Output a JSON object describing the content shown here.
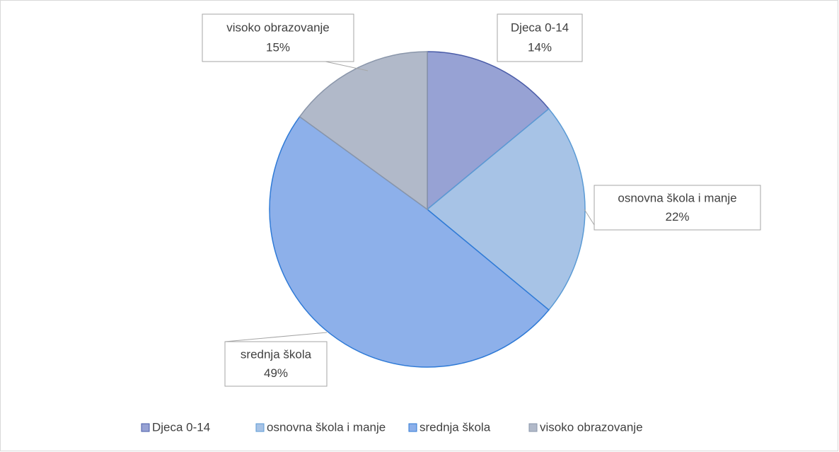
{
  "chart_data": {
    "type": "pie",
    "categories": [
      "Djeca 0-14",
      "osnovna škola i manje",
      "srednja škola",
      "visoko obrazovanje"
    ],
    "values": [
      14,
      22,
      49,
      15
    ],
    "value_labels": [
      "14%",
      "22%",
      "49%",
      "15%"
    ],
    "colors": [
      "#97a2d4",
      "#a7c3e6",
      "#8db0ea",
      "#b1b9c9"
    ],
    "legend": "bottom"
  }
}
